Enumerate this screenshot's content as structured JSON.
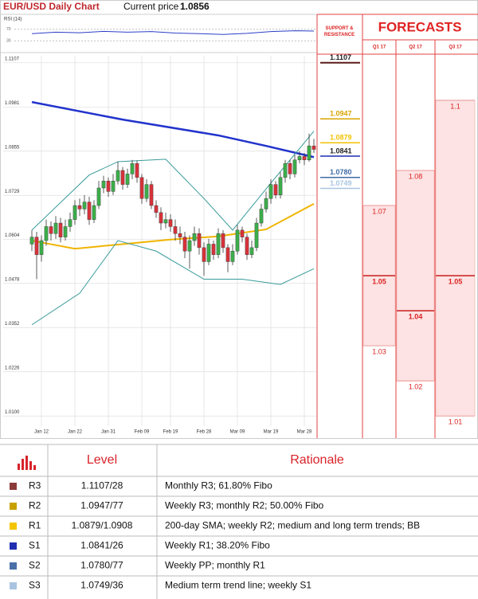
{
  "header": {
    "title": "EUR/USD Daily Chart",
    "price_label": "Current price",
    "price": 1.0856
  },
  "chart_data": [
    {
      "type": "rsi",
      "title": "RSI (14)",
      "ylim": [
        0,
        100
      ],
      "yticks": [
        30,
        70
      ],
      "color": "#2b3fc7",
      "x": [
        0,
        5,
        10,
        15,
        20,
        25,
        30,
        35,
        40,
        45,
        50,
        55,
        59
      ],
      "values": [
        55,
        60,
        58,
        63,
        60,
        62,
        57,
        55,
        52,
        56,
        62,
        65,
        64
      ]
    },
    {
      "type": "candlestick",
      "categories": [
        null,
        null,
        "Jan 12",
        null,
        null,
        null,
        null,
        null,
        null,
        "Jan 22",
        null,
        null,
        null,
        null,
        null,
        null,
        "Jan 31",
        null,
        null,
        null,
        null,
        null,
        null,
        "Feb 09",
        null,
        null,
        null,
        null,
        null,
        "Feb 19",
        null,
        null,
        null,
        null,
        null,
        null,
        "Feb 28",
        null,
        null,
        null,
        null,
        null,
        null,
        "Mar 09",
        null,
        null,
        null,
        null,
        null,
        null,
        "Mar 19",
        null,
        null,
        null,
        null,
        null,
        null,
        "Mar 28",
        null,
        null
      ],
      "open": [
        1.059,
        1.061,
        1.056,
        1.06,
        1.064,
        1.062,
        1.065,
        1.061,
        1.064,
        1.066,
        1.07,
        1.069,
        1.071,
        1.066,
        1.07,
        1.075,
        1.077,
        1.074,
        1.077,
        1.08,
        1.076,
        1.079,
        1.082,
        1.078,
        1.072,
        1.076,
        1.07,
        1.068,
        1.065,
        1.066,
        1.064,
        1.062,
        1.061,
        1.057,
        1.06,
        1.062,
        1.058,
        1.054,
        1.059,
        1.056,
        1.062,
        1.058,
        1.054,
        1.057,
        1.063,
        1.061,
        1.056,
        1.058,
        1.065,
        1.069,
        1.072,
        1.076,
        1.073,
        1.078,
        1.082,
        1.079,
        1.083,
        1.084,
        1.083,
        1.087
      ],
      "high": [
        1.063,
        1.0625,
        1.0615,
        1.066,
        1.0655,
        1.067,
        1.0665,
        1.066,
        1.068,
        1.0715,
        1.072,
        1.073,
        1.0725,
        1.0715,
        1.077,
        1.0785,
        1.078,
        1.079,
        1.0825,
        1.081,
        1.0805,
        1.083,
        1.0828,
        1.079,
        1.0775,
        1.077,
        1.0715,
        1.0695,
        1.068,
        1.0675,
        1.066,
        1.064,
        1.0625,
        1.0615,
        1.064,
        1.0635,
        1.0595,
        1.0605,
        1.06,
        1.0635,
        1.063,
        1.059,
        1.059,
        1.0645,
        1.064,
        1.062,
        1.06,
        1.0665,
        1.0705,
        1.074,
        1.0775,
        1.077,
        1.0795,
        1.083,
        1.083,
        1.0845,
        1.0855,
        1.085,
        1.0905,
        1.089
      ],
      "low": [
        1.057,
        1.049,
        1.054,
        1.0585,
        1.06,
        1.0605,
        1.0595,
        1.06,
        1.0625,
        1.0645,
        1.067,
        1.0675,
        1.0645,
        1.065,
        1.069,
        1.0735,
        1.0725,
        1.073,
        1.076,
        1.0745,
        1.075,
        1.0775,
        1.0765,
        1.0705,
        1.071,
        1.069,
        1.0665,
        1.063,
        1.0635,
        1.0625,
        1.06,
        1.059,
        1.055,
        1.052,
        1.0585,
        1.056,
        1.05,
        1.053,
        1.0545,
        1.055,
        1.0565,
        1.051,
        1.053,
        1.056,
        1.0595,
        1.0545,
        1.055,
        1.057,
        1.064,
        1.068,
        1.0705,
        1.072,
        1.072,
        1.0765,
        1.0775,
        1.078,
        1.082,
        1.0815,
        1.0825,
        1.085
      ],
      "close": [
        1.061,
        1.056,
        1.06,
        1.064,
        1.062,
        1.065,
        1.061,
        1.064,
        1.066,
        1.07,
        1.069,
        1.071,
        1.066,
        1.07,
        1.075,
        1.077,
        1.074,
        1.077,
        1.08,
        1.076,
        1.079,
        1.082,
        1.078,
        1.072,
        1.076,
        1.07,
        1.068,
        1.065,
        1.066,
        1.064,
        1.062,
        1.061,
        1.057,
        1.06,
        1.062,
        1.058,
        1.054,
        1.059,
        1.056,
        1.062,
        1.058,
        1.054,
        1.057,
        1.063,
        1.061,
        1.056,
        1.058,
        1.065,
        1.069,
        1.072,
        1.076,
        1.073,
        1.078,
        1.082,
        1.079,
        1.083,
        1.084,
        1.083,
        1.087,
        1.086
      ],
      "up_color": "#3cae4a",
      "down_color": "#d8323a",
      "lines": [
        {
          "color": "#2233cc",
          "width": 2.5,
          "x": [
            0,
            19,
            39,
            49,
            59
          ],
          "values": [
            1.0995,
            1.0945,
            1.09,
            1.087,
            1.0838
          ]
        },
        {
          "color": "#f0b400",
          "width": 2,
          "x": [
            0,
            9,
            19,
            29,
            39,
            49,
            59
          ],
          "values": [
            1.06,
            1.0577,
            1.059,
            1.0603,
            1.0612,
            1.0632,
            1.0705
          ]
        },
        {
          "color": "#3a9a9a",
          "width": 1,
          "x": [
            0,
            12,
            18,
            28,
            36,
            42,
            50,
            59
          ],
          "values": [
            1.063,
            1.0787,
            1.0825,
            1.0832,
            1.072,
            1.063,
            1.0764,
            1.0912
          ]
        },
        {
          "color": "#3a9a9a",
          "width": 1,
          "x": [
            0,
            10,
            18,
            26,
            36,
            44,
            52,
            59
          ],
          "values": [
            1.036,
            1.045,
            1.06,
            1.057,
            1.049,
            1.049,
            1.0475,
            1.052
          ]
        }
      ],
      "ylim": [
        1.0071,
        1.1127
      ],
      "yticks": [
        1.1107,
        1.0981,
        1.0855,
        1.0729,
        1.0604,
        1.0478,
        1.0352,
        1.0226,
        {
          "value": 1.01,
          "label": "1.0100"
        }
      ],
      "grid": true,
      "levels_title": "SUPPORT & RESISTANCE",
      "levels": [
        1.1107,
        1.0947,
        1.0879,
        1.0841,
        {
          "value": 1.078,
          "label": "1.0780"
        },
        1.0749
      ],
      "level_colors": [
        "#5a1a1a",
        "#d9a400",
        "#f2c200",
        "#1f2fb0",
        "#3f6aa6",
        "#a9c4e0"
      ]
    },
    {
      "type": "range",
      "title": "FORECASTS",
      "categories": [
        "Q1 17",
        "Q2 17",
        "Q3 17"
      ],
      "high": [
        1.07,
        1.08,
        1.1
      ],
      "mid": [
        1.05,
        1.04,
        1.05
      ],
      "low": [
        1.03,
        1.02,
        1.01
      ],
      "color": "#fde3e3",
      "ylim": [
        1.0071,
        1.1127
      ]
    }
  ],
  "table": {
    "header": [
      "Level",
      "Rationale"
    ],
    "rows": [
      [
        "R3",
        "1.1107/28",
        "Monthly R3; 61.80% Fibo"
      ],
      [
        "R2",
        "1.0947/77",
        "Weekly R3; monthly R2; 50.00% Fibo"
      ],
      [
        "R1",
        "1.0879/1.0908",
        "200-day SMA; weekly R2; medium and long term trends; BB"
      ],
      [
        "S1",
        "1.0841/26",
        "Weekly R1; 38.20% Fibo"
      ],
      [
        "S2",
        "1.0780/77",
        "Weekly PP; monthly R1"
      ],
      [
        "S3",
        "1.0749/36",
        "Medium term trend line; weekly S1"
      ]
    ],
    "colors": [
      "#8b3a3a",
      "#c8a000",
      "#f5c400",
      "#1f2fb0",
      "#4a70a8",
      "#a9c4e0"
    ]
  }
}
